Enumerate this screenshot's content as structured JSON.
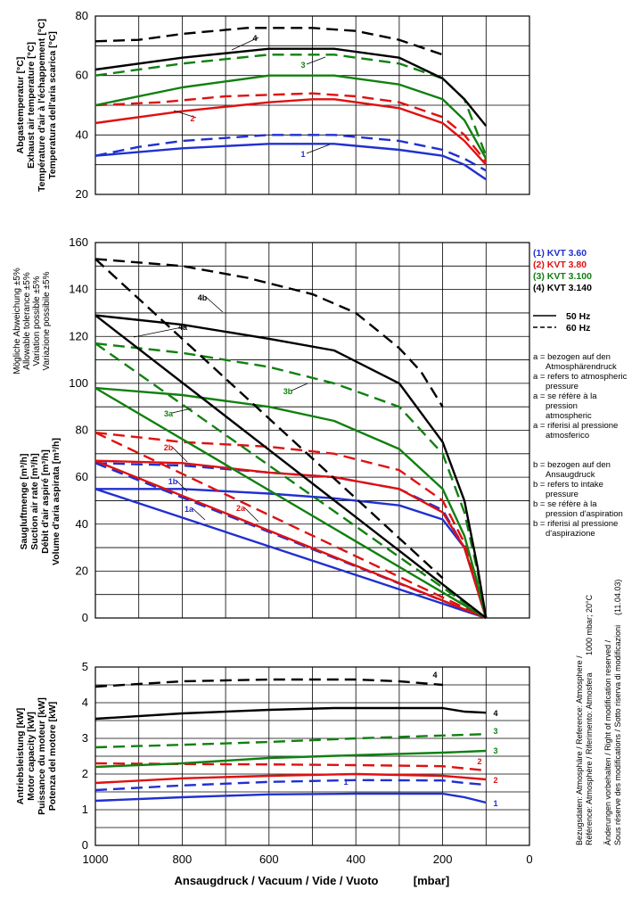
{
  "chart_data": [
    {
      "type": "line",
      "name": "exhaust-temperature",
      "ylabel": [
        "Abgastemperatur [°C]",
        "Exhaust air temperature [°C]",
        "Température d'air à l'échappement [°C]",
        "Temperatura dell'aria scarica [°C]"
      ],
      "ylim": [
        20,
        80
      ],
      "yticks": [
        20,
        40,
        60,
        80
      ],
      "xlim": [
        1000,
        0
      ],
      "series": [
        {
          "model": "1",
          "freq": "50Hz",
          "color": "#2030d0",
          "x": [
            1000,
            800,
            600,
            500,
            450,
            300,
            200,
            150,
            100
          ],
          "y": [
            33,
            35.5,
            37,
            37,
            37,
            35,
            33,
            30,
            25
          ]
        },
        {
          "model": "1",
          "freq": "60Hz",
          "color": "#2030d0",
          "x": [
            1000,
            900,
            800,
            600,
            450,
            300,
            200,
            150,
            100
          ],
          "y": [
            33,
            36,
            38,
            40,
            40,
            38,
            35,
            32,
            28
          ]
        },
        {
          "model": "2",
          "freq": "50Hz",
          "color": "#e01010",
          "x": [
            1000,
            800,
            600,
            500,
            450,
            300,
            200,
            150,
            100
          ],
          "y": [
            44,
            48,
            51,
            52,
            52,
            49,
            44,
            38,
            30
          ]
        },
        {
          "model": "2",
          "freq": "60Hz",
          "color": "#e01010",
          "x": [
            1000,
            850,
            700,
            500,
            400,
            300,
            200,
            150,
            100
          ],
          "y": [
            50,
            51,
            53,
            54,
            53,
            51,
            46,
            40,
            31
          ]
        },
        {
          "model": "3",
          "freq": "50Hz",
          "color": "#108010",
          "x": [
            1000,
            800,
            600,
            450,
            300,
            200,
            150,
            100
          ],
          "y": [
            50,
            56,
            60,
            60,
            57,
            52,
            45,
            32
          ]
        },
        {
          "model": "3",
          "freq": "60Hz",
          "color": "#108010",
          "x": [
            1000,
            800,
            600,
            450,
            300,
            200,
            150,
            100
          ],
          "y": [
            60,
            64,
            67,
            67,
            64,
            59,
            52,
            33
          ]
        },
        {
          "model": "4",
          "freq": "50Hz",
          "color": "#000000",
          "x": [
            1000,
            800,
            600,
            450,
            300,
            200,
            150,
            100
          ],
          "y": [
            62,
            66,
            69,
            69,
            66,
            59,
            52,
            43
          ]
        },
        {
          "model": "4",
          "freq": "60Hz",
          "color": "#000000",
          "x": [
            1000,
            900,
            800,
            650,
            500,
            400,
            300,
            200
          ],
          "y": [
            71.5,
            72,
            74,
            76,
            76,
            75,
            72,
            67
          ]
        }
      ],
      "annotations": [
        "1",
        "2",
        "3",
        "4"
      ]
    },
    {
      "type": "line",
      "name": "suction-air-rate",
      "ylabel": [
        "Saugluftmenge [m³/h]",
        "Suction air rate [m³/h]",
        "Débit d'air aspiré [m³/h]",
        "Volume d'aria aspirata [m³/h]"
      ],
      "tolerance_label": [
        "Mögliche Abweichung ±5%",
        "Allowable tolerance ±5%",
        "Variation possible ±5%",
        "Variazione possibile ±5%"
      ],
      "ylim": [
        0,
        160
      ],
      "yticks": [
        0,
        20,
        40,
        60,
        80,
        100,
        120,
        140,
        160
      ],
      "xlim": [
        1000,
        0
      ],
      "series": [
        {
          "model": "1",
          "ref": "b",
          "freq": "50Hz",
          "color": "#2030d0",
          "x": [
            1000,
            800,
            600,
            450,
            300,
            200,
            150,
            120,
            100
          ],
          "y": [
            55,
            55,
            53,
            51,
            48,
            42,
            30,
            12,
            0
          ]
        },
        {
          "model": "1",
          "ref": "b",
          "freq": "60Hz",
          "color": "#2030d0",
          "x": [
            1000,
            800,
            600,
            450,
            300,
            200,
            150,
            120,
            100
          ],
          "y": [
            66,
            65,
            62,
            60,
            55,
            46,
            30,
            12,
            0
          ]
        },
        {
          "model": "1",
          "ref": "a",
          "freq": "50Hz",
          "color": "#2030d0",
          "x": [
            1000,
            100
          ],
          "y": [
            55,
            0
          ]
        },
        {
          "model": "1",
          "ref": "a",
          "freq": "60Hz",
          "color": "#2030d0",
          "x": [
            1000,
            100
          ],
          "y": [
            66,
            0
          ]
        },
        {
          "model": "2",
          "ref": "b",
          "freq": "50Hz",
          "color": "#e01010",
          "x": [
            1000,
            800,
            600,
            450,
            300,
            200,
            150,
            120,
            100
          ],
          "y": [
            67,
            66,
            62,
            60,
            55,
            45,
            30,
            12,
            0
          ]
        },
        {
          "model": "2",
          "ref": "b",
          "freq": "60Hz",
          "color": "#e01010",
          "x": [
            1000,
            800,
            600,
            450,
            300,
            200,
            150,
            120,
            100
          ],
          "y": [
            79,
            75,
            73,
            70,
            63,
            50,
            32,
            12,
            0
          ]
        },
        {
          "model": "2",
          "ref": "a",
          "freq": "50Hz",
          "color": "#e01010",
          "x": [
            1000,
            100
          ],
          "y": [
            67,
            0
          ]
        },
        {
          "model": "2",
          "ref": "a",
          "freq": "60Hz",
          "color": "#e01010",
          "x": [
            1000,
            100
          ],
          "y": [
            79,
            0
          ]
        },
        {
          "model": "3",
          "ref": "b",
          "freq": "50Hz",
          "color": "#108010",
          "x": [
            1000,
            800,
            600,
            450,
            300,
            200,
            150,
            120,
            100
          ],
          "y": [
            98,
            95,
            90,
            84,
            72,
            55,
            35,
            15,
            0
          ]
        },
        {
          "model": "3",
          "ref": "b",
          "freq": "60Hz",
          "color": "#108010",
          "x": [
            1000,
            800,
            600,
            450,
            300,
            200,
            150,
            120,
            100
          ],
          "y": [
            117,
            113,
            107,
            100,
            90,
            70,
            45,
            20,
            0
          ]
        },
        {
          "model": "3",
          "ref": "a",
          "freq": "50Hz",
          "color": "#108010",
          "x": [
            1000,
            100
          ],
          "y": [
            98,
            0
          ]
        },
        {
          "model": "3",
          "ref": "a",
          "freq": "60Hz",
          "color": "#108010",
          "x": [
            1000,
            100
          ],
          "y": [
            117,
            0
          ]
        },
        {
          "model": "4",
          "ref": "b",
          "freq": "50Hz",
          "color": "#000000",
          "x": [
            1000,
            800,
            600,
            450,
            300,
            200,
            150,
            120,
            100
          ],
          "y": [
            129,
            125,
            119,
            114,
            100,
            75,
            50,
            22,
            0
          ]
        },
        {
          "model": "4",
          "ref": "b",
          "freq": "60Hz",
          "color": "#000000",
          "x": [
            1000,
            800,
            650,
            500,
            400,
            300,
            250,
            200
          ],
          "y": [
            153,
            150,
            145,
            138,
            130,
            115,
            105,
            90
          ]
        },
        {
          "model": "4",
          "ref": "a",
          "freq": "50Hz",
          "color": "#000000",
          "x": [
            1000,
            100
          ],
          "y": [
            129,
            0
          ]
        },
        {
          "model": "4",
          "ref": "a",
          "freq": "60Hz",
          "color": "#000000",
          "x": [
            1000,
            200
          ],
          "y": [
            153,
            17
          ]
        }
      ],
      "annotations": [
        "1a",
        "1b",
        "2a",
        "2b",
        "3a",
        "3b",
        "4a",
        "4b"
      ]
    },
    {
      "type": "line",
      "name": "motor-capacity",
      "ylabel": [
        "Antriebsleistung [kW]",
        "Motor capacity [kW]",
        "Puissance du moteur [kW]",
        "Potenza del motore [kW]"
      ],
      "ylim": [
        0,
        5
      ],
      "yticks": [
        0,
        1,
        2,
        3,
        4,
        5
      ],
      "xlim": [
        1000,
        0
      ],
      "series": [
        {
          "model": "1",
          "freq": "50Hz",
          "color": "#2030d0",
          "x": [
            1000,
            800,
            600,
            400,
            200,
            150,
            100
          ],
          "y": [
            1.25,
            1.35,
            1.43,
            1.45,
            1.45,
            1.35,
            1.2
          ]
        },
        {
          "model": "1",
          "freq": "60Hz",
          "color": "#2030d0",
          "x": [
            1000,
            800,
            600,
            400,
            200,
            150,
            100
          ],
          "y": [
            1.55,
            1.68,
            1.78,
            1.83,
            1.82,
            1.75,
            1.7
          ]
        },
        {
          "model": "2",
          "freq": "50Hz",
          "color": "#e01010",
          "x": [
            1000,
            800,
            600,
            400,
            200,
            100
          ],
          "y": [
            1.75,
            1.88,
            1.95,
            2.0,
            1.95,
            1.85
          ]
        },
        {
          "model": "2",
          "freq": "60Hz",
          "color": "#e01010",
          "x": [
            1000,
            800,
            600,
            400,
            200,
            100
          ],
          "y": [
            2.3,
            2.28,
            2.27,
            2.25,
            2.22,
            2.1
          ]
        },
        {
          "model": "3",
          "freq": "50Hz",
          "color": "#108010",
          "x": [
            1000,
            800,
            600,
            400,
            200,
            100
          ],
          "y": [
            2.2,
            2.3,
            2.45,
            2.53,
            2.6,
            2.65
          ]
        },
        {
          "model": "3",
          "freq": "60Hz",
          "color": "#108010",
          "x": [
            1000,
            800,
            600,
            400,
            200,
            100
          ],
          "y": [
            2.75,
            2.82,
            2.9,
            3.0,
            3.08,
            3.12
          ]
        },
        {
          "model": "4",
          "freq": "50Hz",
          "color": "#000000",
          "x": [
            1000,
            800,
            600,
            450,
            200,
            150,
            100
          ],
          "y": [
            3.55,
            3.7,
            3.8,
            3.85,
            3.85,
            3.75,
            3.72
          ]
        },
        {
          "model": "4",
          "freq": "60Hz",
          "color": "#000000",
          "x": [
            1000,
            800,
            600,
            400,
            300,
            200
          ],
          "y": [
            4.45,
            4.6,
            4.65,
            4.65,
            4.6,
            4.5
          ]
        }
      ],
      "annotations": [
        "1",
        "2",
        "3",
        "4"
      ]
    }
  ],
  "x_axis": {
    "ticks": [
      1000,
      800,
      600,
      400,
      200,
      0
    ],
    "label": "Ansaugdruck / Vacuum / Vide / Vuoto",
    "unit": "[mbar]"
  },
  "legend": {
    "models": [
      {
        "label": "(1)  KVT 3.60",
        "color": "#2030d0"
      },
      {
        "label": "(2)  KVT 3.80",
        "color": "#e01010"
      },
      {
        "label": "(3)  KVT 3.100",
        "color": "#108010"
      },
      {
        "label": "(4)  KVT 3.140",
        "color": "#000000"
      }
    ],
    "freq_50": "50 Hz",
    "freq_60": "60 Hz"
  },
  "notes_a": [
    "a = bezogen auf den",
    "Atmosphärendruck",
    "a = refers to atmospheric",
    "pressure",
    "a = se réfère à la",
    "pression",
    "atmospheric",
    "a = riferisi al pressione",
    "atmosferico"
  ],
  "notes_b": [
    "b = bezogen auf den",
    "Ansaugdruck",
    "b = refers to intake",
    "pressure",
    "b = se réfère à la",
    "pression d'aspiration",
    "b = riferisi al pressione",
    "d'aspirazione"
  ],
  "footer": {
    "ref_line1": "Bezugsdaten: Atmosphäre / Reference: Atmosphere /",
    "ref_line2": "Référence: Atmosphère / Riferimento: Atmosfera",
    "ref_cond": "1000 mbar; 20°C",
    "rights1": "Änderungen vorbehalten / Right of modification reserved /",
    "rights2": "Sous réserve des modifications / Sotto riserva di modificazioni",
    "date": "(11.04.03)"
  }
}
